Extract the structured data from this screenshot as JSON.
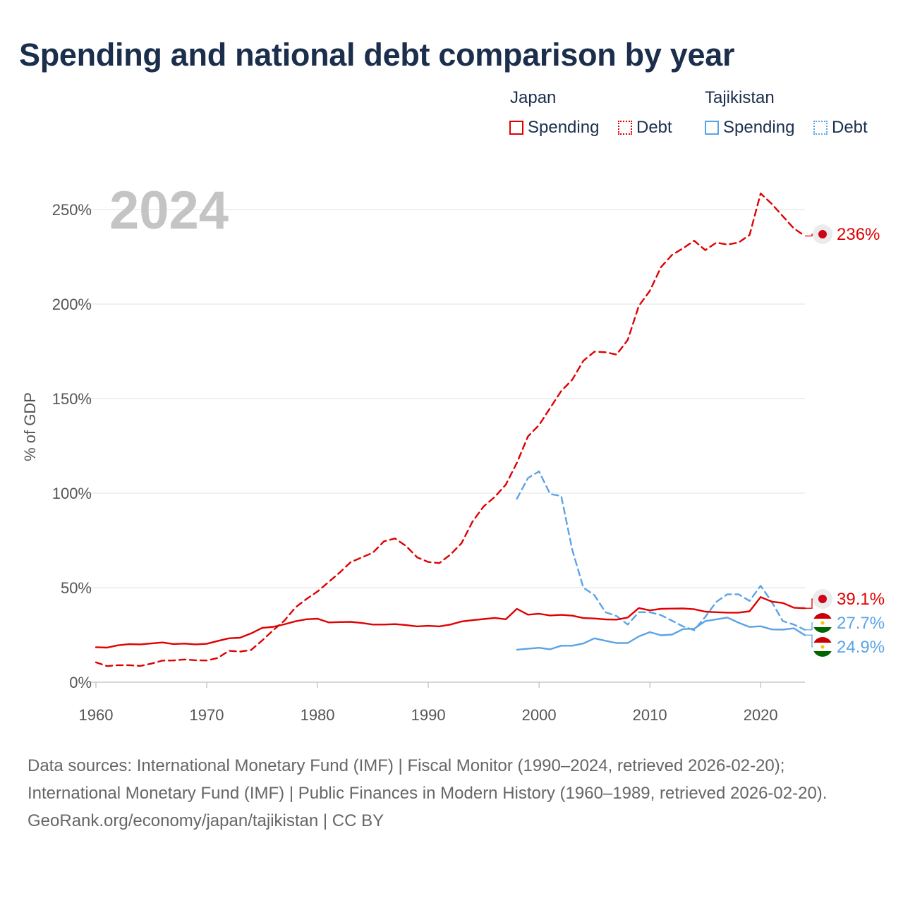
{
  "title": "Spending and national debt comparison by year",
  "legend": {
    "groups": [
      {
        "name": "Japan",
        "color": "#e00000",
        "spending_label": "Spending",
        "debt_label": "Debt"
      },
      {
        "name": "Tajikistan",
        "color": "#5aa4e6",
        "spending_label": "Spending",
        "debt_label": "Debt"
      }
    ]
  },
  "chart_data": {
    "type": "line",
    "title": "Spending and national debt comparison by year",
    "year_label": "2024",
    "ylabel": "% of GDP",
    "xlabel": "",
    "xlim": [
      1960,
      2024
    ],
    "ylim": [
      0,
      260
    ],
    "x_ticks": [
      1960,
      1970,
      1980,
      1990,
      2000,
      2010,
      2020
    ],
    "y_ticks": [
      0,
      50,
      100,
      150,
      200,
      250
    ],
    "y_tick_labels": [
      "0%",
      "50%",
      "100%",
      "150%",
      "200%",
      "250%"
    ],
    "grid": true,
    "series": [
      {
        "name": "Japan Spending",
        "country": "Japan",
        "metric": "Spending",
        "style": "solid",
        "color": "#e00000",
        "x": [
          1960,
          1961,
          1962,
          1963,
          1964,
          1965,
          1966,
          1967,
          1968,
          1969,
          1970,
          1971,
          1972,
          1973,
          1974,
          1975,
          1976,
          1977,
          1978,
          1979,
          1980,
          1981,
          1982,
          1983,
          1984,
          1985,
          1986,
          1987,
          1988,
          1989,
          1990,
          1991,
          1992,
          1993,
          1994,
          1995,
          1996,
          1997,
          1998,
          1999,
          2000,
          2001,
          2002,
          2003,
          2004,
          2005,
          2006,
          2007,
          2008,
          2009,
          2010,
          2011,
          2012,
          2013,
          2014,
          2015,
          2016,
          2017,
          2018,
          2019,
          2020,
          2021,
          2022,
          2023,
          2024
        ],
        "values": [
          18.5,
          18.3,
          19.5,
          20.1,
          20.0,
          20.5,
          21.0,
          20.2,
          20.4,
          20.0,
          20.3,
          21.8,
          23.2,
          23.5,
          25.8,
          28.7,
          29.3,
          30.6,
          32.2,
          33.3,
          33.6,
          31.6,
          31.8,
          31.9,
          31.3,
          30.5,
          30.5,
          30.7,
          30.2,
          29.5,
          29.8,
          29.5,
          30.5,
          32.1,
          32.8,
          33.4,
          34.0,
          33.3,
          38.8,
          35.7,
          36.2,
          35.3,
          35.6,
          35.2,
          33.9,
          33.7,
          33.2,
          33.1,
          34.2,
          39.2,
          38.0,
          38.8,
          38.9,
          39.0,
          38.6,
          37.3,
          37.0,
          36.8,
          36.8,
          37.5,
          45.0,
          42.6,
          41.9,
          39.4,
          39.1
        ],
        "end_label": "39.1%",
        "end_value": 39.1
      },
      {
        "name": "Japan Debt",
        "country": "Japan",
        "metric": "Debt",
        "style": "dashed",
        "color": "#e00000",
        "x": [
          1960,
          1961,
          1962,
          1963,
          1964,
          1965,
          1966,
          1967,
          1968,
          1969,
          1970,
          1971,
          1972,
          1973,
          1974,
          1975,
          1976,
          1977,
          1978,
          1979,
          1980,
          1981,
          1982,
          1983,
          1984,
          1985,
          1986,
          1987,
          1988,
          1989,
          1990,
          1991,
          1992,
          1993,
          1994,
          1995,
          1996,
          1997,
          1998,
          1999,
          2000,
          2001,
          2002,
          2003,
          2004,
          2005,
          2006,
          2007,
          2008,
          2009,
          2010,
          2011,
          2012,
          2013,
          2014,
          2015,
          2016,
          2017,
          2018,
          2019,
          2020,
          2021,
          2022,
          2023,
          2024
        ],
        "values": [
          10.5,
          8.5,
          9.0,
          9.0,
          8.6,
          9.8,
          11.4,
          11.5,
          12.0,
          11.6,
          11.5,
          12.8,
          16.6,
          16.2,
          17.0,
          22.0,
          27.5,
          32.5,
          39.5,
          44.0,
          48.0,
          53.0,
          58.0,
          63.5,
          66.0,
          68.5,
          74.5,
          76.0,
          72.0,
          66.0,
          63.6,
          63.0,
          67.5,
          73.5,
          85.0,
          93.0,
          98.0,
          104.5,
          116.0,
          130.0,
          136.0,
          145.0,
          154.0,
          160.0,
          170.0,
          174.8,
          174.5,
          173.3,
          181.0,
          199.0,
          207.0,
          219.5,
          226.0,
          229.5,
          233.5,
          228.5,
          232.5,
          231.5,
          232.5,
          236.5,
          258.5,
          253.0,
          246.5,
          240.0,
          236.0
        ],
        "end_label": "236%",
        "end_value": 236
      },
      {
        "name": "Tajikistan Spending",
        "country": "Tajikistan",
        "metric": "Spending",
        "style": "solid",
        "color": "#5aa4e6",
        "x": [
          1998,
          1999,
          2000,
          2001,
          2002,
          2003,
          2004,
          2005,
          2006,
          2007,
          2008,
          2009,
          2010,
          2011,
          2012,
          2013,
          2014,
          2015,
          2016,
          2017,
          2018,
          2019,
          2020,
          2021,
          2022,
          2023,
          2024
        ],
        "values": [
          17.2,
          17.7,
          18.2,
          17.4,
          19.3,
          19.3,
          20.5,
          23.2,
          21.9,
          20.7,
          20.7,
          24.2,
          26.5,
          24.8,
          25.2,
          28.1,
          28.3,
          32.3,
          33.2,
          34.2,
          31.5,
          29.2,
          29.6,
          27.9,
          27.8,
          28.5,
          24.9
        ],
        "end_label": "24.9%",
        "end_value": 24.9
      },
      {
        "name": "Tajikistan Debt",
        "country": "Tajikistan",
        "metric": "Debt",
        "style": "dashed",
        "color": "#5aa4e6",
        "x": [
          1998,
          1999,
          2000,
          2001,
          2002,
          2003,
          2004,
          2005,
          2006,
          2007,
          2008,
          2009,
          2010,
          2011,
          2012,
          2013,
          2014,
          2015,
          2016,
          2017,
          2018,
          2019,
          2020,
          2021,
          2022,
          2023,
          2024
        ],
        "values": [
          97.0,
          108.0,
          111.5,
          99.5,
          98.5,
          70.0,
          50.0,
          46.0,
          37.0,
          35.0,
          30.5,
          37.0,
          37.0,
          35.5,
          32.5,
          29.5,
          27.5,
          34.5,
          42.5,
          46.5,
          46.5,
          43.0,
          51.0,
          42.5,
          32.3,
          30.5,
          27.7
        ],
        "end_label": "27.7%",
        "end_value": 27.7
      }
    ]
  },
  "footer": {
    "sources": "Data sources: International Monetary Fund (IMF) | Fiscal Monitor (1990–2024, retrieved 2026-02-20); International Monetary Fund (IMF) | Public Finances in Modern History (1960–1989, retrieved 2026-02-20).",
    "credit": "GeoRank.org/economy/japan/tajikistan | CC BY"
  }
}
